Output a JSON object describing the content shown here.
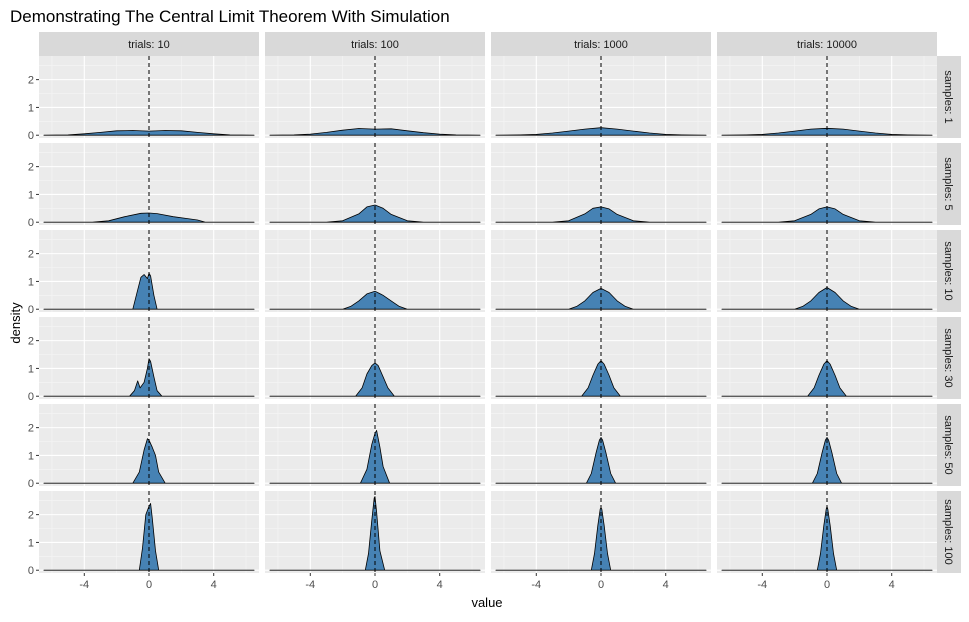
{
  "chart_data": {
    "type": "area",
    "title": "Demonstrating The Central Limit Theorem With Simulation",
    "xlabel": "value",
    "ylabel": "density",
    "col_strip_prefix": "trials: ",
    "row_strip_prefix": "samples: ",
    "col_facets": [
      "10",
      "100",
      "1000",
      "10000"
    ],
    "row_facets": [
      "1",
      "5",
      "10",
      "30",
      "50",
      "100"
    ],
    "xlim": [
      -6.8,
      6.8
    ],
    "ylim": [
      -0.1,
      2.85
    ],
    "x_ticks": [
      -4,
      0,
      4
    ],
    "x_tick_labels": [
      "-4",
      "0",
      "4"
    ],
    "y_ticks": [
      0,
      1,
      2
    ],
    "y_tick_labels": [
      "0",
      "1",
      "2"
    ],
    "vline_x": 0,
    "grid": true,
    "fill_color": "#4682B4",
    "panel_bg": "#EBEBEB",
    "strip_bg": "#D9D9D9",
    "panels": [
      {
        "row": "1",
        "col": "10",
        "x": [
          -6.5,
          -5,
          -4,
          -3,
          -2,
          -1,
          0,
          1,
          2,
          3,
          4,
          5,
          6.5
        ],
        "y": [
          0,
          0.01,
          0.05,
          0.1,
          0.16,
          0.17,
          0.15,
          0.17,
          0.16,
          0.1,
          0.05,
          0.01,
          0
        ]
      },
      {
        "row": "1",
        "col": "100",
        "x": [
          -6.5,
          -5,
          -4,
          -3,
          -2,
          -1,
          0,
          1,
          2,
          3,
          4,
          5,
          6.5
        ],
        "y": [
          0,
          0.01,
          0.04,
          0.1,
          0.18,
          0.24,
          0.22,
          0.23,
          0.16,
          0.09,
          0.04,
          0.01,
          0
        ]
      },
      {
        "row": "1",
        "col": "1000",
        "x": [
          -6.5,
          -5,
          -4,
          -3,
          -2,
          -1,
          0,
          1,
          2,
          3,
          4,
          5,
          6.5
        ],
        "y": [
          0,
          0.01,
          0.03,
          0.08,
          0.15,
          0.22,
          0.27,
          0.22,
          0.15,
          0.08,
          0.03,
          0.01,
          0
        ]
      },
      {
        "row": "1",
        "col": "10000",
        "x": [
          -6.5,
          -5,
          -4,
          -3,
          -2,
          -1,
          0,
          1,
          2,
          3,
          4,
          5,
          6.5
        ],
        "y": [
          0,
          0.01,
          0.03,
          0.08,
          0.15,
          0.22,
          0.25,
          0.22,
          0.15,
          0.08,
          0.03,
          0.01,
          0
        ]
      },
      {
        "row": "5",
        "col": "10",
        "x": [
          -3.5,
          -2.5,
          -1.5,
          -0.5,
          0,
          0.5,
          1.5,
          2.5,
          3,
          3.5
        ],
        "y": [
          0,
          0.05,
          0.2,
          0.32,
          0.33,
          0.31,
          0.2,
          0.12,
          0.08,
          0
        ]
      },
      {
        "row": "5",
        "col": "100",
        "x": [
          -3,
          -2,
          -1,
          -0.5,
          0,
          0.5,
          1,
          2,
          3
        ],
        "y": [
          0,
          0.05,
          0.3,
          0.55,
          0.62,
          0.5,
          0.28,
          0.05,
          0
        ]
      },
      {
        "row": "5",
        "col": "1000",
        "x": [
          -3,
          -2,
          -1,
          -0.5,
          0,
          0.5,
          1,
          2,
          3
        ],
        "y": [
          0,
          0.05,
          0.3,
          0.5,
          0.55,
          0.48,
          0.28,
          0.05,
          0
        ]
      },
      {
        "row": "5",
        "col": "10000",
        "x": [
          -3,
          -2,
          -1,
          -0.5,
          0,
          0.5,
          1,
          2,
          3
        ],
        "y": [
          0,
          0.05,
          0.28,
          0.48,
          0.55,
          0.48,
          0.28,
          0.05,
          0
        ]
      },
      {
        "row": "10",
        "col": "10",
        "x": [
          -1,
          -0.7,
          -0.5,
          -0.3,
          -0.1,
          0,
          0.1,
          0.3,
          0.5
        ],
        "y": [
          0,
          0.7,
          1.15,
          1.25,
          1.1,
          1.3,
          1.2,
          0.5,
          0
        ]
      },
      {
        "row": "10",
        "col": "100",
        "x": [
          -2,
          -1.5,
          -1,
          -0.5,
          0,
          0.5,
          1,
          1.5,
          2
        ],
        "y": [
          0,
          0.1,
          0.3,
          0.55,
          0.65,
          0.5,
          0.3,
          0.1,
          0
        ]
      },
      {
        "row": "10",
        "col": "1000",
        "x": [
          -2,
          -1.5,
          -1,
          -0.5,
          0,
          0.5,
          1,
          1.5,
          2
        ],
        "y": [
          0,
          0.1,
          0.3,
          0.6,
          0.75,
          0.6,
          0.3,
          0.1,
          0
        ]
      },
      {
        "row": "10",
        "col": "10000",
        "x": [
          -2,
          -1.5,
          -1,
          -0.5,
          0,
          0.5,
          1,
          1.5,
          2
        ],
        "y": [
          0,
          0.1,
          0.3,
          0.6,
          0.78,
          0.6,
          0.3,
          0.1,
          0
        ]
      },
      {
        "row": "30",
        "col": "10",
        "x": [
          -1.2,
          -0.9,
          -0.7,
          -0.55,
          -0.3,
          -0.1,
          0,
          0.1,
          0.3,
          0.5,
          0.8
        ],
        "y": [
          0,
          0.2,
          0.55,
          0.3,
          0.5,
          1.0,
          1.35,
          1.25,
          0.7,
          0.2,
          0
        ]
      },
      {
        "row": "30",
        "col": "100",
        "x": [
          -1.2,
          -0.8,
          -0.5,
          -0.2,
          0,
          0.2,
          0.5,
          0.8,
          1.2
        ],
        "y": [
          0,
          0.3,
          0.8,
          1.1,
          1.2,
          1.1,
          0.7,
          0.3,
          0
        ]
      },
      {
        "row": "30",
        "col": "1000",
        "x": [
          -1.2,
          -0.8,
          -0.5,
          -0.2,
          0,
          0.2,
          0.5,
          0.8,
          1.2
        ],
        "y": [
          0,
          0.3,
          0.75,
          1.15,
          1.28,
          1.15,
          0.75,
          0.3,
          0
        ]
      },
      {
        "row": "30",
        "col": "10000",
        "x": [
          -1.2,
          -0.8,
          -0.5,
          -0.2,
          0,
          0.2,
          0.5,
          0.8,
          1.2
        ],
        "y": [
          0,
          0.3,
          0.75,
          1.15,
          1.28,
          1.15,
          0.75,
          0.3,
          0
        ]
      },
      {
        "row": "50",
        "col": "10",
        "x": [
          -1,
          -0.6,
          -0.3,
          -0.1,
          0,
          0.2,
          0.4,
          0.6,
          1
        ],
        "y": [
          0,
          0.4,
          1.2,
          1.6,
          1.55,
          1.3,
          1.0,
          0.4,
          0
        ]
      },
      {
        "row": "50",
        "col": "100",
        "x": [
          -0.9,
          -0.5,
          -0.2,
          0,
          0.1,
          0.3,
          0.5,
          0.9
        ],
        "y": [
          0,
          0.5,
          1.4,
          1.8,
          1.9,
          1.3,
          0.6,
          0
        ]
      },
      {
        "row": "50",
        "col": "1000",
        "x": [
          -0.9,
          -0.6,
          -0.3,
          -0.1,
          0,
          0.1,
          0.3,
          0.6,
          0.9
        ],
        "y": [
          0,
          0.35,
          1.1,
          1.55,
          1.65,
          1.55,
          1.1,
          0.35,
          0
        ]
      },
      {
        "row": "50",
        "col": "10000",
        "x": [
          -0.9,
          -0.6,
          -0.3,
          -0.1,
          0,
          0.1,
          0.3,
          0.6,
          0.9
        ],
        "y": [
          0,
          0.35,
          1.1,
          1.55,
          1.65,
          1.55,
          1.1,
          0.35,
          0
        ]
      },
      {
        "row": "100",
        "col": "10",
        "x": [
          -0.6,
          -0.4,
          -0.2,
          0,
          0.1,
          0.2,
          0.4,
          0.6
        ],
        "y": [
          0,
          0.8,
          2.0,
          2.3,
          2.4,
          1.9,
          0.7,
          0
        ]
      },
      {
        "row": "100",
        "col": "100",
        "x": [
          -0.6,
          -0.4,
          -0.2,
          -0.05,
          0,
          0.1,
          0.3,
          0.6
        ],
        "y": [
          0,
          0.6,
          1.8,
          2.6,
          2.65,
          2.1,
          0.7,
          0
        ]
      },
      {
        "row": "100",
        "col": "1000",
        "x": [
          -0.6,
          -0.4,
          -0.2,
          -0.05,
          0,
          0.05,
          0.2,
          0.4,
          0.6
        ],
        "y": [
          0,
          0.6,
          1.6,
          2.2,
          2.25,
          2.2,
          1.6,
          0.6,
          0
        ]
      },
      {
        "row": "100",
        "col": "10000",
        "x": [
          -0.6,
          -0.4,
          -0.2,
          -0.05,
          0,
          0.05,
          0.2,
          0.4,
          0.6
        ],
        "y": [
          0,
          0.6,
          1.6,
          2.2,
          2.3,
          2.2,
          1.6,
          0.6,
          0
        ]
      }
    ]
  }
}
